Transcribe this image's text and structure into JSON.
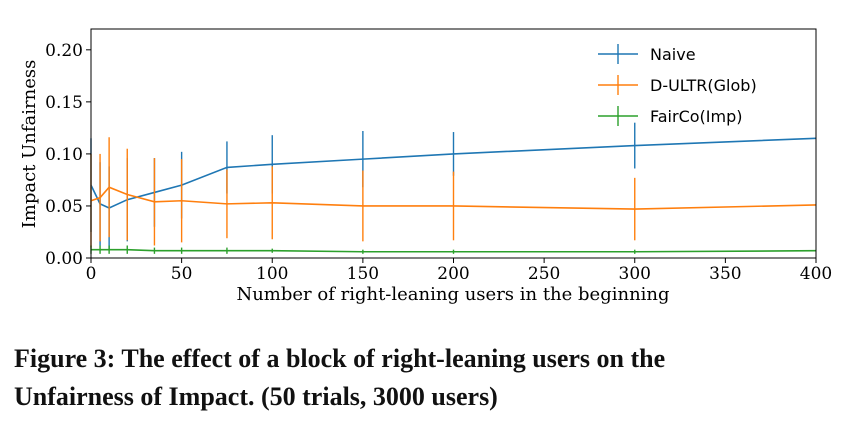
{
  "chart_data": {
    "type": "line",
    "xlabel": "Number of right-leaning users in the beginning",
    "ylabel": "Impact Unfairness",
    "xlim": [
      0,
      400
    ],
    "ylim": [
      0,
      0.22
    ],
    "xticks": [
      "0",
      "50",
      "100",
      "150",
      "200",
      "250",
      "300",
      "350",
      "400"
    ],
    "yticks": [
      "0.00",
      "0.05",
      "0.10",
      "0.15",
      "0.20"
    ],
    "grid": false,
    "legend_position": "top-right",
    "x": [
      0,
      5,
      10,
      20,
      35,
      50,
      75,
      100,
      150,
      200,
      300,
      400
    ],
    "series": [
      {
        "name": "Naive",
        "color": "#1f77b4",
        "values": [
          0.07,
          0.052,
          0.048,
          0.056,
          0.063,
          0.07,
          0.087,
          0.09,
          0.095,
          0.1,
          0.108,
          0.115
        ],
        "err": [
          0.045,
          0.04,
          0.04,
          0.04,
          0.033,
          0.032,
          0.025,
          0.028,
          0.027,
          0.021,
          0.022,
          null
        ]
      },
      {
        "name": "D-ULTR(Glob)",
        "color": "#ff7f0e",
        "values": [
          0.055,
          0.058,
          0.068,
          0.061,
          0.054,
          0.055,
          0.052,
          0.053,
          0.05,
          0.05,
          0.047,
          0.051
        ],
        "err": [
          0.045,
          0.042,
          0.048,
          0.044,
          0.042,
          0.04,
          0.033,
          0.035,
          0.034,
          0.033,
          0.03,
          null
        ]
      },
      {
        "name": "FairCo(Imp)",
        "color": "#2ca02c",
        "values": [
          0.008,
          0.008,
          0.008,
          0.008,
          0.007,
          0.007,
          0.007,
          0.007,
          0.006,
          0.006,
          0.006,
          0.007
        ],
        "err": [
          0.004,
          0.004,
          0.004,
          0.004,
          0.003,
          0.003,
          0.003,
          0.002,
          0.002,
          0.002,
          0.002,
          null
        ]
      }
    ]
  },
  "caption": {
    "line1": "Figure 3: The effect of a block of right-leaning users on the",
    "line2": "Unfairness of Impact. (50 trials, 3000 users)"
  }
}
